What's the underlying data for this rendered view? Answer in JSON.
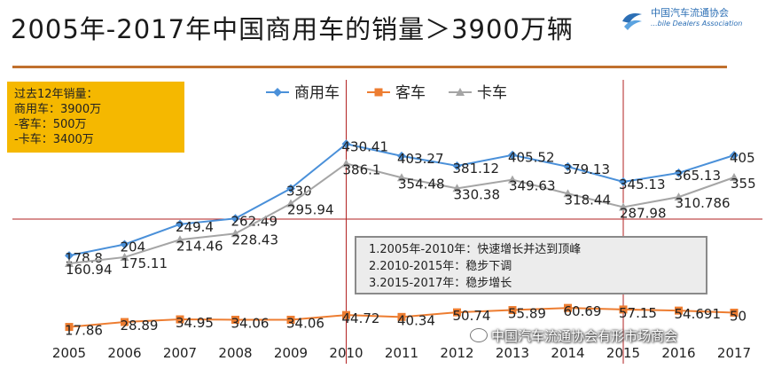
{
  "title": "2005年-2017年中国商用车的销量＞3900万辆",
  "logo": {
    "cn": "中国汽车流通协会",
    "en": "...bile Dealers Association",
    "icon": "cada-logo-icon"
  },
  "summary": [
    "过去12年销量：",
    "商用车：3900万",
    "-客车：500万",
    "-卡车：3400万"
  ],
  "notes": [
    "1.2005年-2010年：快速增长并达到顶峰",
    "2.2010-2015年：稳步下调",
    "3.2015-2017年：稳步增长"
  ],
  "watermark": "中国汽车流通协会有形市场商会",
  "chart_data": {
    "type": "line",
    "categories": [
      "2005",
      "2006",
      "2007",
      "2008",
      "2009",
      "2010",
      "2011",
      "2012",
      "2013",
      "2014",
      "2015",
      "2016",
      "2017"
    ],
    "series": [
      {
        "name": "商用车",
        "color": "#4a90d9",
        "marker": "diamond",
        "values": [
          178.8,
          204,
          249.4,
          262.49,
          330,
          430.41,
          403.27,
          381.12,
          405.52,
          379.13,
          345.13,
          365.13,
          405
        ],
        "labels": [
          "178.8",
          "204",
          "249.4",
          "262.49",
          "330",
          "430.41",
          "403.27",
          "381.12",
          "405.52",
          "379.13",
          "345.13",
          "365.13",
          "405"
        ]
      },
      {
        "name": "客车",
        "color": "#ed7d31",
        "marker": "square",
        "values": [
          17.86,
          28.89,
          34.95,
          34.06,
          34.06,
          44.72,
          40.34,
          50.74,
          55.89,
          60.69,
          57.15,
          54.691,
          50
        ],
        "labels": [
          "17.86",
          "28.89",
          "34.95",
          "34.06",
          "34.06",
          "44.72",
          "40.34",
          "50.74",
          "55.89",
          "60.69",
          "57.15",
          "54.691",
          "50"
        ]
      },
      {
        "name": "卡车",
        "color": "#a5a5a5",
        "marker": "triangle",
        "values": [
          160.94,
          175.11,
          214.46,
          228.43,
          295.94,
          386.1,
          354.48,
          330.38,
          349.63,
          318.44,
          287.98,
          310.786,
          355
        ],
        "labels": [
          "160.94",
          "175.11",
          "214.46",
          "228.43",
          "295.94",
          "386.1",
          "354.48",
          "330.38",
          "349.63",
          "318.44",
          "287.98",
          "310.786",
          "355"
        ]
      }
    ],
    "reference_lines": {
      "vertical_at": [
        "2010",
        "2015"
      ],
      "color": "#b22222"
    },
    "legend_position": "top",
    "grid": false
  }
}
